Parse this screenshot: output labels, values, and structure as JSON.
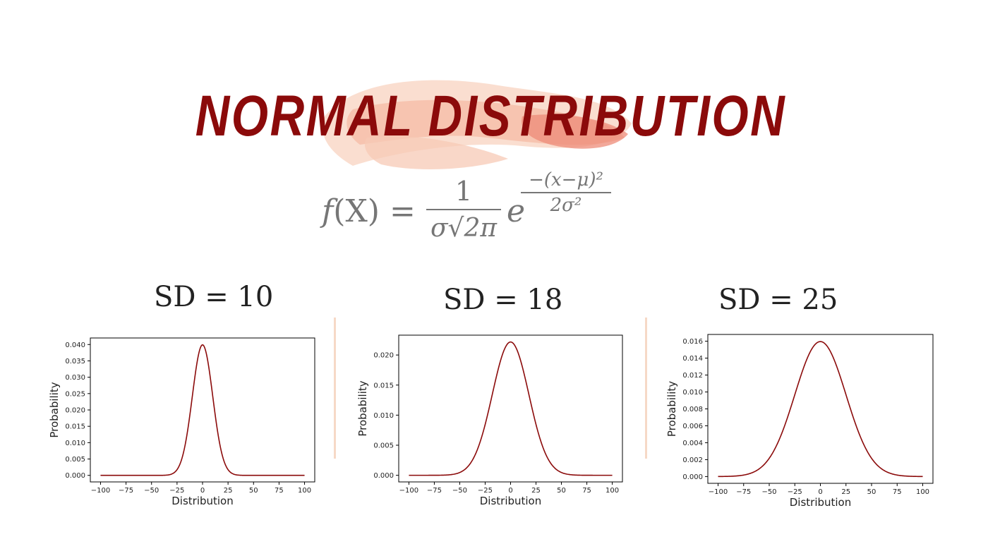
{
  "title": "NORMAL DISTRIBUTION",
  "formula": {
    "lhs_f": "f",
    "lhs_arg": "(X) =",
    "numerator": "1",
    "denominator": "σ√2π",
    "e": "e",
    "exp_numerator": "−(x−μ)²",
    "exp_denominator": "2σ²"
  },
  "colors": {
    "title": "#8b0a0a",
    "curve": "#8b0a0a",
    "divider": "#f6d9c7",
    "formula": "#767676"
  },
  "panel_labels": [
    "SD = 10",
    "SD = 18",
    "SD = 25"
  ],
  "chart_data": [
    {
      "type": "line",
      "title": "",
      "xlabel": "Distribution",
      "ylabel": "Probability",
      "mean": 0,
      "sd": 10,
      "x_range": [
        -100,
        100
      ],
      "xlim": [
        -110,
        110
      ],
      "ylim": [
        -0.002,
        0.042
      ],
      "xticks": [
        -100,
        -75,
        -50,
        -25,
        0,
        25,
        50,
        75,
        100
      ],
      "yticks": [
        0.0,
        0.005,
        0.01,
        0.015,
        0.02,
        0.025,
        0.03,
        0.035,
        0.04
      ],
      "ytick_labels": [
        "0.000",
        "0.005",
        "0.010",
        "0.015",
        "0.020",
        "0.025",
        "0.030",
        "0.035",
        "0.040"
      ],
      "peak": 0.0399,
      "grid": false
    },
    {
      "type": "line",
      "title": "",
      "xlabel": "Distribution",
      "ylabel": "Probability",
      "mean": 0,
      "sd": 18,
      "x_range": [
        -100,
        100
      ],
      "xlim": [
        -110,
        110
      ],
      "ylim": [
        -0.0011,
        0.0233
      ],
      "xticks": [
        -100,
        -75,
        -50,
        -25,
        0,
        25,
        50,
        75,
        100
      ],
      "yticks": [
        0.0,
        0.005,
        0.01,
        0.015,
        0.02
      ],
      "ytick_labels": [
        "0.000",
        "0.005",
        "0.010",
        "0.015",
        "0.020"
      ],
      "peak": 0.0222,
      "grid": false
    },
    {
      "type": "line",
      "title": "",
      "xlabel": "Distribution",
      "ylabel": "Probability",
      "mean": 0,
      "sd": 25,
      "x_range": [
        -100,
        100
      ],
      "xlim": [
        -110,
        110
      ],
      "ylim": [
        -0.0008,
        0.0168
      ],
      "xticks": [
        -100,
        -75,
        -50,
        -25,
        0,
        25,
        50,
        75,
        100
      ],
      "yticks": [
        0.0,
        0.002,
        0.004,
        0.006,
        0.008,
        0.01,
        0.012,
        0.014,
        0.016
      ],
      "ytick_labels": [
        "0.000",
        "0.002",
        "0.004",
        "0.006",
        "0.008",
        "0.010",
        "0.012",
        "0.014",
        "0.016"
      ],
      "peak": 0.016,
      "grid": false
    }
  ]
}
